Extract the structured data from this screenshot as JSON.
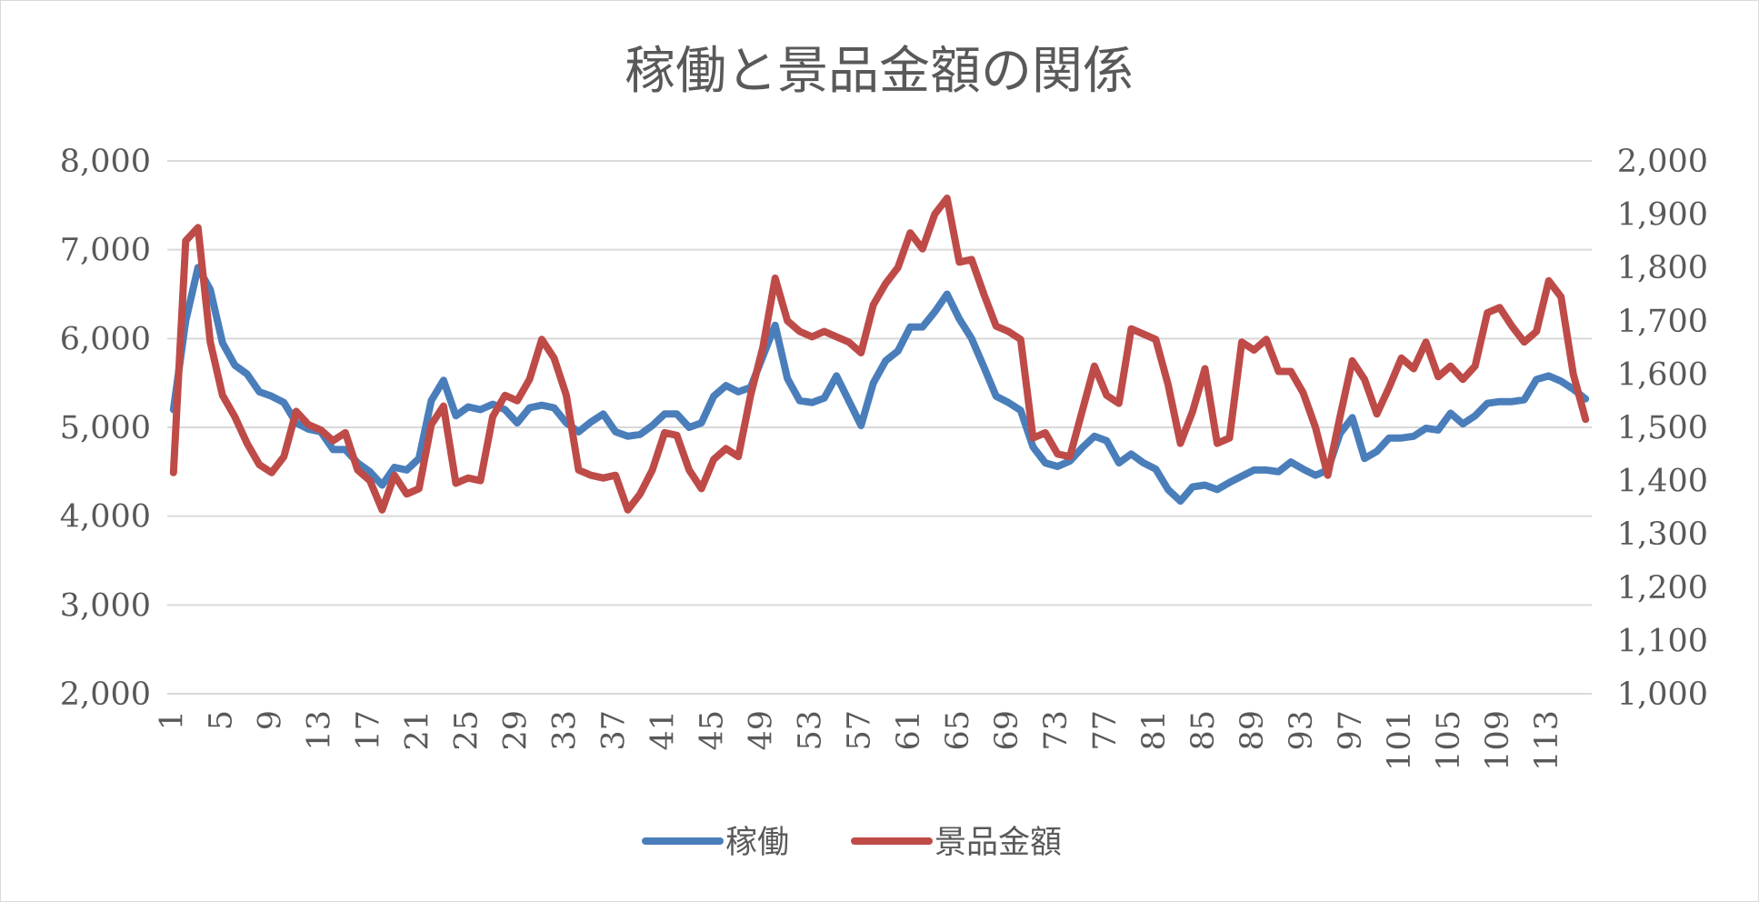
{
  "chart_data": {
    "type": "line",
    "title": "稼働と景品金額の関係",
    "x": [
      1,
      2,
      3,
      4,
      5,
      6,
      7,
      8,
      9,
      10,
      11,
      12,
      13,
      14,
      15,
      16,
      17,
      18,
      19,
      20,
      21,
      22,
      23,
      24,
      25,
      26,
      27,
      28,
      29,
      30,
      31,
      32,
      33,
      34,
      35,
      36,
      37,
      38,
      39,
      40,
      41,
      42,
      43,
      44,
      45,
      46,
      47,
      48,
      49,
      50,
      51,
      52,
      53,
      54,
      55,
      56,
      57,
      58,
      59,
      60,
      61,
      62,
      63,
      64,
      65,
      66,
      67,
      68,
      69,
      70,
      71,
      72,
      73,
      74,
      75,
      76,
      77,
      78,
      79,
      80,
      81,
      82,
      83,
      84,
      85,
      86,
      87,
      88,
      89,
      90,
      91,
      92,
      93,
      94,
      95,
      96,
      97,
      98,
      99,
      100,
      101,
      102,
      103,
      104,
      105,
      106,
      107,
      108,
      109,
      110,
      111,
      112,
      113,
      114,
      115,
      116
    ],
    "x_tick_labels": [
      "1",
      "5",
      "9",
      "13",
      "17",
      "21",
      "25",
      "29",
      "33",
      "37",
      "41",
      "45",
      "49",
      "53",
      "57",
      "61",
      "65",
      "69",
      "73",
      "77",
      "81",
      "85",
      "89",
      "93",
      "97",
      "101",
      "105",
      "109",
      "113"
    ],
    "y_left": {
      "ylim": [
        2000,
        8000
      ],
      "ticks": [
        "2,000",
        "3,000",
        "4,000",
        "5,000",
        "6,000",
        "7,000",
        "8,000"
      ]
    },
    "y_right": {
      "ylim": [
        1000,
        2000
      ],
      "ticks": [
        "1,000",
        "1,100",
        "1,200",
        "1,300",
        "1,400",
        "1,500",
        "1,600",
        "1,700",
        "1,800",
        "1,900",
        "2,000"
      ]
    },
    "grid": true,
    "legend_position": "bottom",
    "series": [
      {
        "name": "稼働",
        "axis": "left",
        "color": "#4a7ebb",
        "values": [
          5200,
          6200,
          6800,
          6550,
          5950,
          5700,
          5600,
          5400,
          5350,
          5280,
          5050,
          4980,
          4950,
          4750,
          4750,
          4600,
          4500,
          4350,
          4550,
          4520,
          4650,
          5300,
          5530,
          5130,
          5230,
          5200,
          5260,
          5200,
          5050,
          5220,
          5250,
          5220,
          5050,
          4950,
          5060,
          5150,
          4950,
          4900,
          4920,
          5020,
          5150,
          5150,
          5000,
          5050,
          5350,
          5470,
          5400,
          5450,
          5800,
          6150,
          5550,
          5300,
          5280,
          5330,
          5580,
          5300,
          5020,
          5500,
          5750,
          5860,
          6130,
          6130,
          6300,
          6500,
          6220,
          6000,
          5680,
          5350,
          5280,
          5190,
          4780,
          4600,
          4560,
          4620,
          4770,
          4900,
          4850,
          4600,
          4700,
          4600,
          4530,
          4300,
          4170,
          4330,
          4350,
          4300,
          4380,
          4450,
          4520,
          4520,
          4500,
          4610,
          4530,
          4460,
          4520,
          4930,
          5110,
          4650,
          4730,
          4880,
          4880,
          4900,
          4990,
          4970,
          5160,
          5040,
          5130,
          5270,
          5290,
          5290,
          5310,
          5540,
          5580,
          5520,
          5430,
          5320
        ]
      },
      {
        "name": "景品金額",
        "axis": "right",
        "color": "#be4b48",
        "values": [
          1415,
          1850,
          1875,
          1660,
          1560,
          1520,
          1470,
          1430,
          1415,
          1445,
          1530,
          1505,
          1495,
          1475,
          1490,
          1420,
          1400,
          1345,
          1410,
          1375,
          1385,
          1505,
          1540,
          1395,
          1405,
          1400,
          1520,
          1560,
          1550,
          1590,
          1665,
          1630,
          1560,
          1420,
          1410,
          1405,
          1410,
          1345,
          1375,
          1420,
          1490,
          1485,
          1420,
          1385,
          1440,
          1460,
          1445,
          1560,
          1650,
          1780,
          1700,
          1680,
          1670,
          1680,
          1670,
          1660,
          1640,
          1730,
          1770,
          1800,
          1865,
          1835,
          1900,
          1930,
          1810,
          1815,
          1750,
          1690,
          1680,
          1665,
          1480,
          1490,
          1450,
          1445,
          1530,
          1615,
          1560,
          1545,
          1685,
          1675,
          1665,
          1580,
          1470,
          1530,
          1610,
          1470,
          1480,
          1660,
          1645,
          1665,
          1605,
          1605,
          1565,
          1500,
          1410,
          1520,
          1625,
          1590,
          1525,
          1575,
          1630,
          1610,
          1660,
          1595,
          1615,
          1590,
          1615,
          1715,
          1725,
          1690,
          1660,
          1680,
          1775,
          1745,
          1600,
          1515
        ]
      }
    ]
  }
}
